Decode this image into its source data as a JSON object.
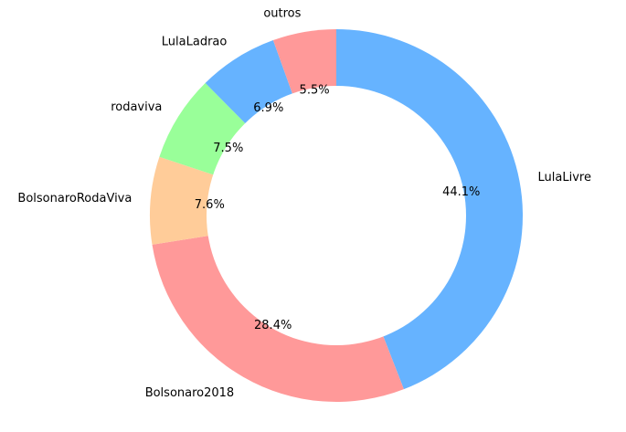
{
  "chart_data": {
    "type": "pie",
    "variant": "donut",
    "title": "",
    "start_angle_deg": 90,
    "direction": "clockwise",
    "legend": "none",
    "slices": [
      {
        "label": "LulaLivre",
        "value": 44.1,
        "pct_label": "44.1%",
        "color": "#66b3ff"
      },
      {
        "label": "Bolsonaro2018",
        "value": 28.4,
        "pct_label": "28.4%",
        "color": "#ff9999"
      },
      {
        "label": "BolsonaroRodaViva",
        "value": 7.6,
        "pct_label": "7.6%",
        "color": "#ffcc99"
      },
      {
        "label": "rodaviva",
        "value": 7.5,
        "pct_label": "7.5%",
        "color": "#99ff99"
      },
      {
        "label": "LulaLadrao",
        "value": 6.9,
        "pct_label": "6.9%",
        "color": "#66b3ff"
      },
      {
        "label": "outros",
        "value": 5.5,
        "pct_label": "5.5%",
        "color": "#ff9999"
      }
    ]
  }
}
